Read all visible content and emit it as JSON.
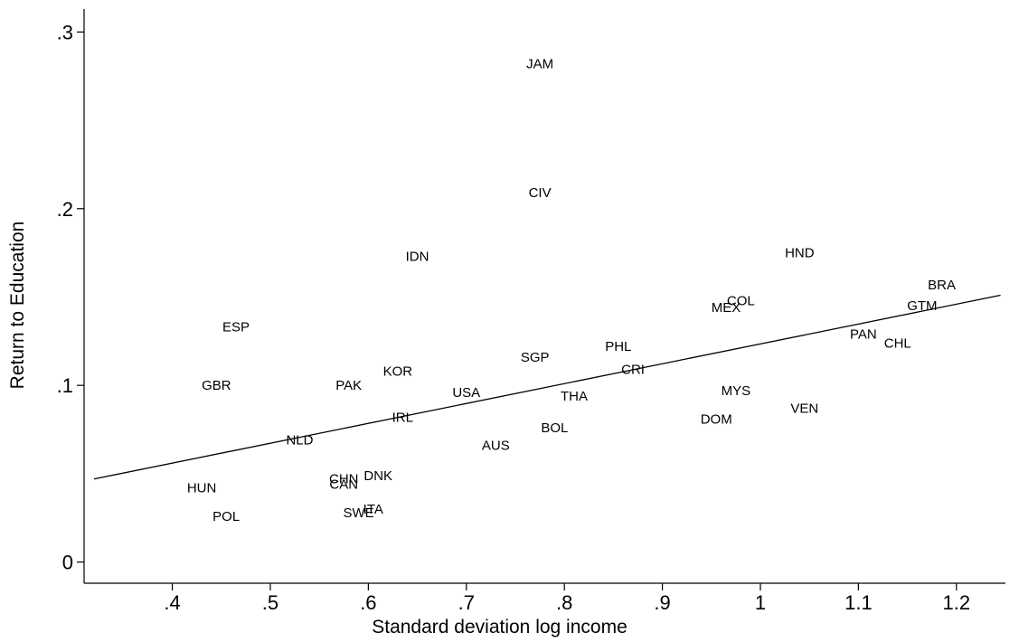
{
  "chart_data": {
    "type": "scatter",
    "title": "",
    "xlabel": "Standard deviation log income",
    "ylabel": "Return to Education",
    "xlim": [
      0.31,
      1.25
    ],
    "ylim": [
      -0.012,
      0.313
    ],
    "x_ticks": [
      {
        "value": 0.4,
        "label": ".4"
      },
      {
        "value": 0.5,
        "label": ".5"
      },
      {
        "value": 0.6,
        "label": ".6"
      },
      {
        "value": 0.7,
        "label": ".7"
      },
      {
        "value": 0.8,
        "label": ".8"
      },
      {
        "value": 0.9,
        "label": ".9"
      },
      {
        "value": 1.0,
        "label": "1"
      },
      {
        "value": 1.1,
        "label": "1.1"
      },
      {
        "value": 1.2,
        "label": "1.2"
      }
    ],
    "y_ticks": [
      {
        "value": 0,
        "label": "0"
      },
      {
        "value": 0.1,
        "label": ".1"
      },
      {
        "value": 0.2,
        "label": ".2"
      },
      {
        "value": 0.3,
        "label": ".3"
      }
    ],
    "grid": false,
    "legend": "none",
    "marker": "label-only",
    "fit_line": {
      "x": [
        0.32,
        1.245
      ],
      "y": [
        0.047,
        0.151
      ]
    },
    "points": [
      {
        "label": "JAM",
        "x": 0.775,
        "y": 0.282
      },
      {
        "label": "CIV",
        "x": 0.775,
        "y": 0.209
      },
      {
        "label": "IDN",
        "x": 0.65,
        "y": 0.173
      },
      {
        "label": "HND",
        "x": 1.04,
        "y": 0.175
      },
      {
        "label": "BRA",
        "x": 1.185,
        "y": 0.157
      },
      {
        "label": "GTM",
        "x": 1.165,
        "y": 0.145
      },
      {
        "label": "COL",
        "x": 0.98,
        "y": 0.148
      },
      {
        "label": "MEX",
        "x": 0.965,
        "y": 0.144
      },
      {
        "label": "PAN",
        "x": 1.105,
        "y": 0.129
      },
      {
        "label": "CHL",
        "x": 1.14,
        "y": 0.124
      },
      {
        "label": "ESP",
        "x": 0.465,
        "y": 0.133
      },
      {
        "label": "PHL",
        "x": 0.855,
        "y": 0.122
      },
      {
        "label": "SGP",
        "x": 0.77,
        "y": 0.116
      },
      {
        "label": "CRI",
        "x": 0.87,
        "y": 0.109
      },
      {
        "label": "KOR",
        "x": 0.63,
        "y": 0.108
      },
      {
        "label": "GBR",
        "x": 0.445,
        "y": 0.1
      },
      {
        "label": "PAK",
        "x": 0.58,
        "y": 0.1
      },
      {
        "label": "USA",
        "x": 0.7,
        "y": 0.096
      },
      {
        "label": "THA",
        "x": 0.81,
        "y": 0.094
      },
      {
        "label": "MYS",
        "x": 0.975,
        "y": 0.097
      },
      {
        "label": "VEN",
        "x": 1.045,
        "y": 0.087
      },
      {
        "label": "IRL",
        "x": 0.635,
        "y": 0.082
      },
      {
        "label": "DOM",
        "x": 0.955,
        "y": 0.081
      },
      {
        "label": "BOL",
        "x": 0.79,
        "y": 0.076
      },
      {
        "label": "NLD",
        "x": 0.53,
        "y": 0.069
      },
      {
        "label": "AUS",
        "x": 0.73,
        "y": 0.066
      },
      {
        "label": "CHN",
        "x": 0.575,
        "y": 0.047
      },
      {
        "label": "DNK",
        "x": 0.61,
        "y": 0.049
      },
      {
        "label": "CAN",
        "x": 0.575,
        "y": 0.044
      },
      {
        "label": "HUN",
        "x": 0.43,
        "y": 0.042
      },
      {
        "label": "ITA",
        "x": 0.605,
        "y": 0.03
      },
      {
        "label": "SWE",
        "x": 0.59,
        "y": 0.028
      },
      {
        "label": "POL",
        "x": 0.455,
        "y": 0.026
      }
    ]
  }
}
